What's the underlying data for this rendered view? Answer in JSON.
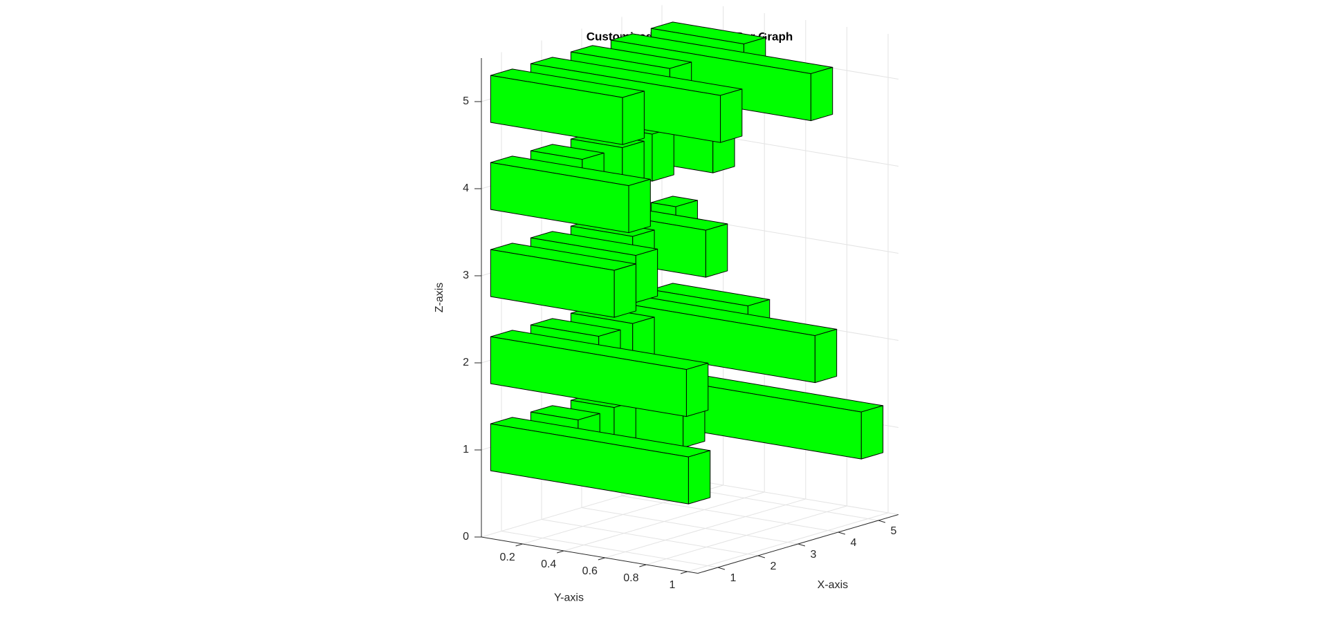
{
  "chart_data": {
    "type": "bar3h",
    "title": "Customized Horizontal 3D Bar Graph",
    "xlabel": "X-axis",
    "ylabel": "Y-axis",
    "zlabel": "Z-axis",
    "x": [
      1,
      2,
      3,
      4,
      5
    ],
    "z": [
      1,
      2,
      3,
      4,
      5
    ],
    "values": [
      [
        0.96,
        0.23,
        0.21,
        0.35,
        1.02
      ],
      [
        0.95,
        0.33,
        0.3,
        0.99,
        0.47
      ],
      [
        0.6,
        0.51,
        0.3,
        0.46,
        0.12
      ],
      [
        0.67,
        0.25,
        0.25,
        0.2,
        0.3
      ],
      [
        0.64,
        0.92,
        0.48,
        0.97,
        0.45
      ]
    ],
    "color": "#00ff00",
    "xlim": [
      0.5,
      5.5
    ],
    "ylim": [
      0,
      1.05
    ],
    "zlim": [
      0,
      5.5
    ],
    "xticks": [
      1,
      2,
      3,
      4,
      5
    ],
    "yticks": [
      0.2,
      0.4,
      0.6,
      0.8,
      1
    ],
    "zticks": [
      0,
      1,
      2,
      3,
      4,
      5
    ],
    "grid": true
  }
}
